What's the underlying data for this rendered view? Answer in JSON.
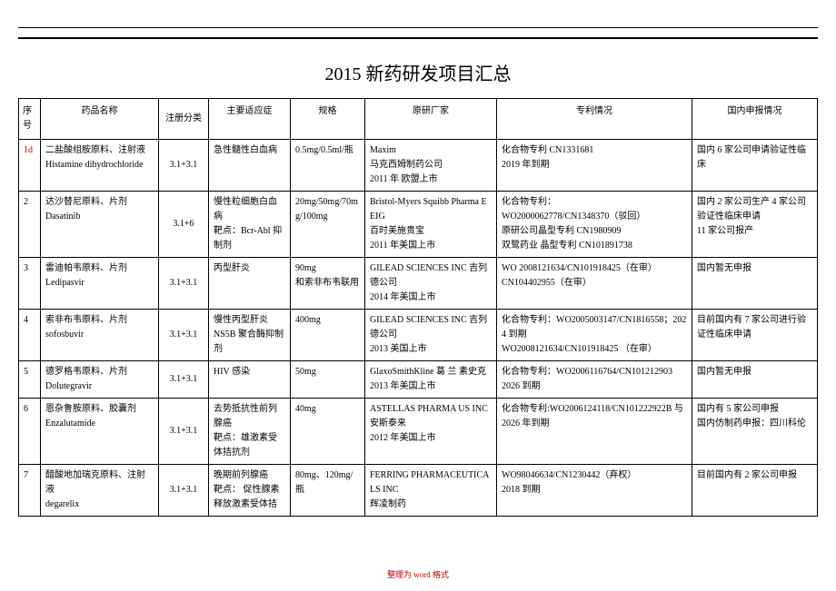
{
  "title": "2015 新药研发项目汇总",
  "footer": "整理为 word 格式",
  "headers": {
    "seq": "序号",
    "name": "药品名称",
    "class": "注册分类",
    "indication": "主要适应症",
    "spec": "规格",
    "orig": "原研厂家",
    "patent": "专利情况",
    "domestic": "国内申报情况"
  },
  "rows": [
    {
      "seq": "1d",
      "seq_red": true,
      "name": "二盐酸组胺原料、注射液\nHistamine dihydrochloride",
      "class": "3.1+3.1",
      "indication": "急性髓性白血病",
      "spec": "0.5mg/0.5ml/瓶",
      "orig": "Maxim\n马克西姆制药公司\n2011 年 欧盟上市",
      "patent": "化合物专利 CN1331681\n2019 年到期",
      "domestic": "国内 6 家公司申请验证性临床"
    },
    {
      "seq": "2",
      "name": "达沙替尼原料、片剂\nDasatinib",
      "class": "3.1+6",
      "indication": "慢性粒细胞白血病\n靶点：Bcr-Abl 抑制剂",
      "spec": "20mg/50mg/70mg/100mg",
      "orig": "Bristol-Myers Squibb Pharma EEIG\n百时美施贵宝\n2011 年美国上市",
      "patent": "化合物专利：\nWO2000062778/CN1348370（驳回）\n原研公司晶型专利 CN1980909\n双鹭药业 晶型专利 CN101891738",
      "domestic": "国内 2 家公司生产 4 家公司验证性临床申请\n11 家公司报产"
    },
    {
      "seq": "3",
      "name": "雷迪帕韦原料、片剂\nLedipasvir",
      "class": "3.1+3.1",
      "indication": "丙型肝炎",
      "spec": "90mg\n和索非布韦联用",
      "orig": "GILEAD SCIENCES INC 吉列德公司\n2014 年美国上市",
      "patent": "WO 2008121634/CN101918425（在审）\nCN104402955（在审）",
      "domestic": "国内暂无申报"
    },
    {
      "seq": "4",
      "name": "索非布韦原料、片剂\nsofosbuvir",
      "class": "3.1+3.1",
      "indication": "慢性丙型肝炎\nNS5B 聚合酶抑制剂",
      "spec": "400mg",
      "orig": "GILEAD SCIENCES INC 吉列德公司\n2013 美国上市",
      "patent": "化合物专利：WO2005003147/CN1816558；2024 到期\nWO2008121634/CN101918425 （在审）",
      "domestic": "目前国内有 7 家公司进行验证性临床申请"
    },
    {
      "seq": "5",
      "name": "德罗格韦原料、片剂\nDolutegravir",
      "class": "3.1+3.1",
      "indication": "HIV 感染",
      "spec": "50mg",
      "orig": "GlaxoSmithKline 葛 兰 素史克\n2013 年美国上市",
      "patent": "化合物专利：WO2006116764/CN101212903\n2026 到期",
      "domestic": "国内暂无申报"
    },
    {
      "seq": "6",
      "name": "恩杂鲁胺原料、胶囊剂\nEnzalutamide",
      "class": "3.1+3.1",
      "indication": "去势抵抗性前列腺癌\n靶点：雄激素受体拮抗剂",
      "spec": "40mg",
      "orig": "ASTELLAS PHARMA US INC\n安斯泰来\n2012 年美国上市",
      "patent": "化合物专利:WO2006124118/CN101222922B 与 2026 年到期",
      "domestic": "国内有 5 家公司申报\n国内仿制药申报：四川科伦"
    },
    {
      "seq": "7",
      "name": "醋酸地加瑞克原料、注射液\ndegarelix",
      "class": "3.1+3.1",
      "indication": "晚期前列腺癌\n靶点： 促性腺素释放激素受体拮",
      "spec": "80mg、120mg/瓶",
      "orig": "FERRING PHARMACEUTICALS INC\n辉凌制药",
      "patent": "WO98046634/CN1230442（弃权）\n2018 到期",
      "domestic": "目前国内有 2 家公司申报"
    }
  ]
}
